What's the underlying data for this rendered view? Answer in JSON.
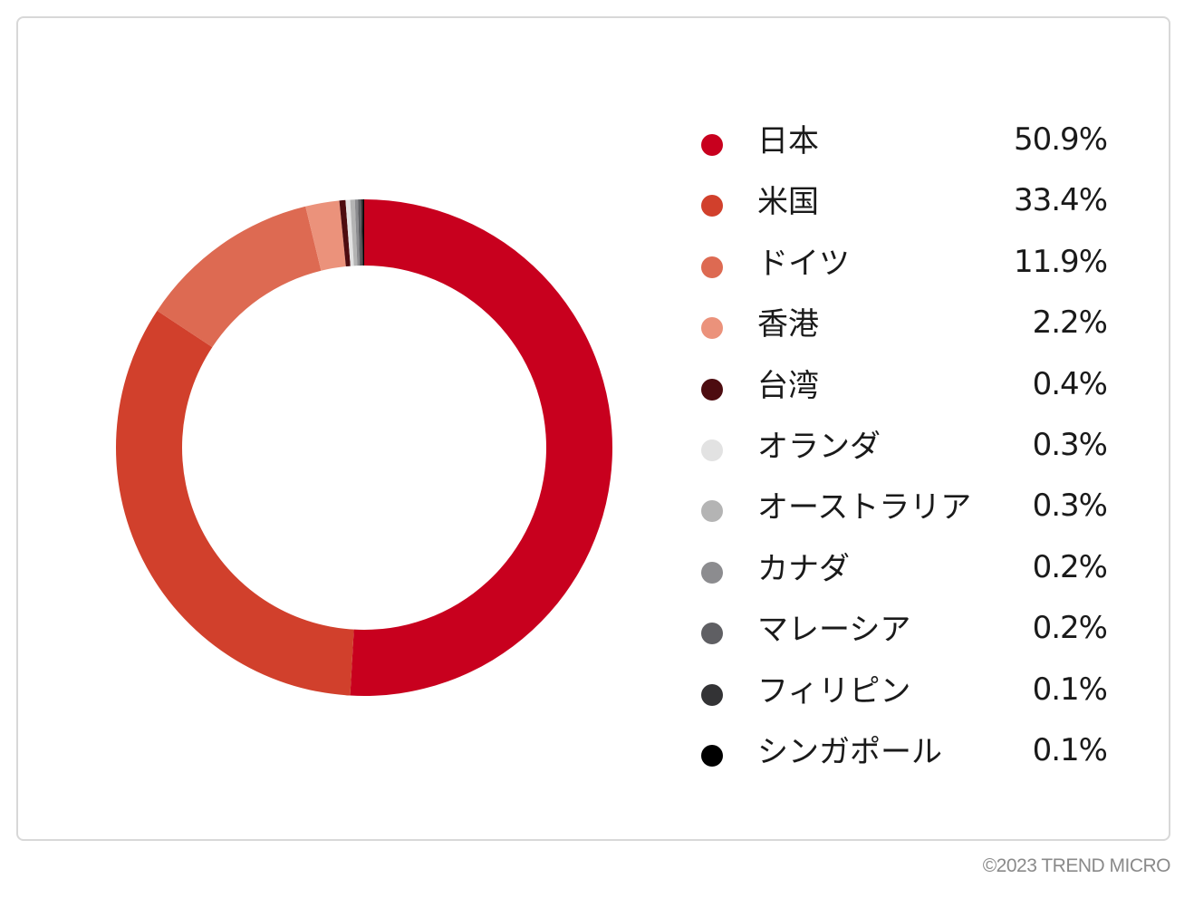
{
  "chart_data": {
    "type": "pie",
    "donut": true,
    "categories": [
      "日本",
      "米国",
      "ドイツ",
      "香港",
      "台湾",
      "オランダ",
      "オーストラリア",
      "カナダ",
      "マレーシア",
      "フィリピン",
      "シンガポール"
    ],
    "values": [
      50.9,
      33.4,
      11.9,
      2.2,
      0.4,
      0.3,
      0.3,
      0.2,
      0.2,
      0.1,
      0.1
    ],
    "value_labels": [
      "50.9%",
      "33.4%",
      "11.9%",
      "2.2%",
      "0.4%",
      "0.3%",
      "0.3%",
      "0.2%",
      "0.2%",
      "0.1%",
      "0.1%"
    ],
    "colors": [
      "#c8001e",
      "#d1402c",
      "#dd6a52",
      "#eb927b",
      "#4d0c10",
      "#e2e2e2",
      "#b4b4b4",
      "#8c8c8f",
      "#5f5f63",
      "#333335",
      "#000000"
    ],
    "legend_position": "right"
  },
  "footer": {
    "copyright": "©2023 TREND MICRO"
  }
}
